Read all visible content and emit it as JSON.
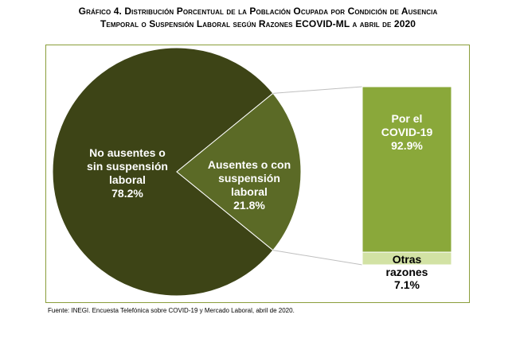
{
  "title": {
    "line1": "Gráfico 4. Distribución Porcentual de la Población Ocupada por Condición de Ausencia",
    "line2": "Temporal o Suspensión Laboral según Razones ECOVID-ML a abril de 2020"
  },
  "chart_data": [
    {
      "type": "pie",
      "slices": [
        {
          "label_lines": [
            "No ausentes o",
            "sin suspensión",
            "laboral"
          ],
          "value": 78.2,
          "value_label": "78.2%",
          "color": "#3d4416"
        },
        {
          "label_lines": [
            "Ausentes o con",
            "suspensión",
            "laboral"
          ],
          "value": 21.8,
          "value_label": "21.8%",
          "color": "#5b6a26"
        }
      ]
    },
    {
      "type": "bar",
      "stacked": true,
      "segments": [
        {
          "label_lines": [
            "Por el",
            "COVID-19"
          ],
          "value": 92.9,
          "value_label": "92.9%",
          "color": "#8aa83a"
        },
        {
          "label_lines": [
            "Otras",
            "razones"
          ],
          "value": 7.1,
          "value_label": "7.1%",
          "color": "#d2e2a4"
        }
      ]
    }
  ],
  "source": "Fuente:  INEGI. Encuesta Telefónica sobre COVID-19 y Mercado Laboral, abril de 2020.",
  "colors": {
    "frame": "#8a9e3a",
    "connector": "#bfbfbf"
  }
}
